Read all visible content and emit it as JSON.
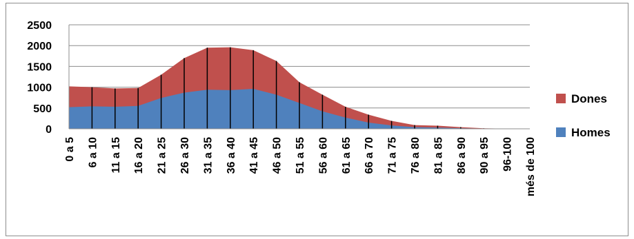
{
  "chart_data": {
    "type": "area",
    "stacked": true,
    "categories": [
      "0 a 5",
      "6 a 10",
      "11 a 15",
      "16 a 20",
      "21 a 25",
      "26 a 30",
      "31 a 35",
      "36 a 40",
      "41 a 45",
      "46 a 50",
      "51 a 55",
      "56 a 60",
      "61 a 65",
      "66 a 70",
      "71 a 75",
      "76 a 80",
      "81 a 85",
      "86 a 90",
      "90 a 95",
      "96-100",
      "més de 100"
    ],
    "series": [
      {
        "name": "Homes",
        "color": "#4f81bd",
        "values": [
          520,
          540,
          530,
          550,
          740,
          870,
          940,
          930,
          960,
          820,
          620,
          420,
          270,
          150,
          80,
          40,
          30,
          15,
          5,
          2,
          1
        ]
      },
      {
        "name": "Dones",
        "color": "#c0504d",
        "values": [
          500,
          460,
          440,
          430,
          560,
          830,
          1010,
          1030,
          930,
          810,
          500,
          400,
          260,
          190,
          110,
          50,
          45,
          25,
          7,
          3,
          1
        ]
      }
    ],
    "ylim": [
      0,
      2500
    ],
    "yticks": [
      0,
      500,
      1000,
      1500,
      2000,
      2500
    ],
    "grid": true,
    "legend_position": "right",
    "legend_order": [
      "Dones",
      "Homes"
    ]
  }
}
